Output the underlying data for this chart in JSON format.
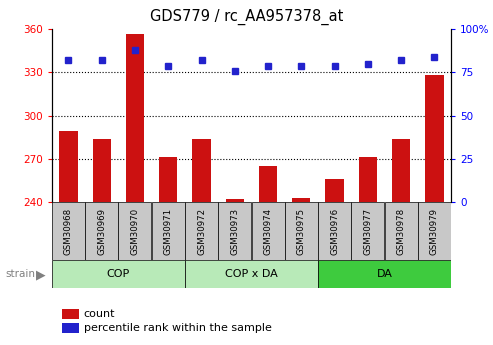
{
  "title": "GDS779 / rc_AA957378_at",
  "samples": [
    "GSM30968",
    "GSM30969",
    "GSM30970",
    "GSM30971",
    "GSM30972",
    "GSM30973",
    "GSM30974",
    "GSM30975",
    "GSM30976",
    "GSM30977",
    "GSM30978",
    "GSM30979"
  ],
  "counts": [
    289,
    284,
    357,
    271,
    284,
    242,
    265,
    243,
    256,
    271,
    284,
    328
  ],
  "percentiles": [
    82,
    82,
    88,
    79,
    82,
    76,
    79,
    79,
    79,
    80,
    82,
    84
  ],
  "ylim_left": [
    240,
    360
  ],
  "ylim_right": [
    0,
    100
  ],
  "yticks_left": [
    240,
    270,
    300,
    330,
    360
  ],
  "yticks_right": [
    0,
    25,
    50,
    75,
    100
  ],
  "grid_lines": [
    270,
    300,
    330
  ],
  "group_labels": [
    "COP",
    "COP x DA",
    "DA"
  ],
  "group_colors": [
    "#b8eab8",
    "#b8eab8",
    "#3ecb3e"
  ],
  "group_starts": [
    0,
    4,
    8
  ],
  "group_ends": [
    3,
    7,
    11
  ],
  "bar_color": "#cc1111",
  "dot_color": "#2222cc",
  "background_color": "#ffffff",
  "label_bg_color": "#c8c8c8",
  "strain_label": "strain",
  "legend_count": "count",
  "legend_pct": "percentile rank within the sample"
}
